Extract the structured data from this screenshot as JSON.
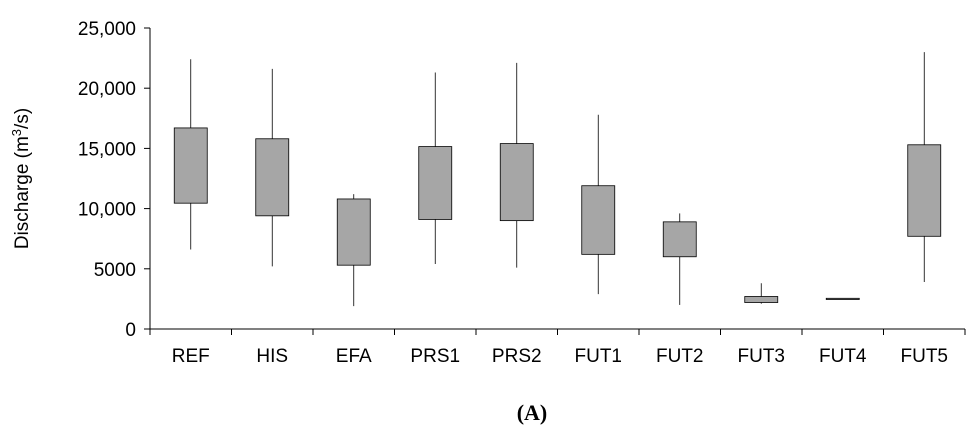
{
  "chart_data": {
    "type": "box",
    "title": "",
    "xlabel": "",
    "ylabel_main": "Discharge (m",
    "ylabel_sup": "3",
    "ylabel_tail": "/s)",
    "ylim": [
      0,
      25000
    ],
    "yticks": [
      0,
      5000,
      10000,
      15000,
      20000,
      25000
    ],
    "ytick_labels": [
      "0",
      "5000",
      "10,000",
      "15,000",
      "20,000",
      "25,000"
    ],
    "categories": [
      "REF",
      "HIS",
      "EFA",
      "PRS1",
      "PRS2",
      "FUT1",
      "FUT2",
      "FUT3",
      "FUT4",
      "FUT5"
    ],
    "boxes": [
      {
        "min": 6600,
        "q1": 10450,
        "q3": 16700,
        "max": 22400
      },
      {
        "min": 5200,
        "q1": 9400,
        "q3": 15800,
        "max": 21600
      },
      {
        "min": 1900,
        "q1": 5300,
        "q3": 10800,
        "max": 11200
      },
      {
        "min": 5400,
        "q1": 9100,
        "q3": 15150,
        "max": 21300
      },
      {
        "min": 5100,
        "q1": 9000,
        "q3": 15400,
        "max": 22100
      },
      {
        "min": 2900,
        "q1": 6200,
        "q3": 11900,
        "max": 17800
      },
      {
        "min": 2000,
        "q1": 6000,
        "q3": 8900,
        "max": 9600
      },
      {
        "min": 2100,
        "q1": 2200,
        "q3": 2700,
        "max": 3800
      },
      {
        "min": 2450,
        "q1": 2450,
        "q3": 2550,
        "max": 2550
      },
      {
        "min": 3900,
        "q1": 7700,
        "q3": 15300,
        "max": 23000
      }
    ],
    "box_fill": "#a6a6a6",
    "grid": false
  },
  "panel_label": "(A)"
}
